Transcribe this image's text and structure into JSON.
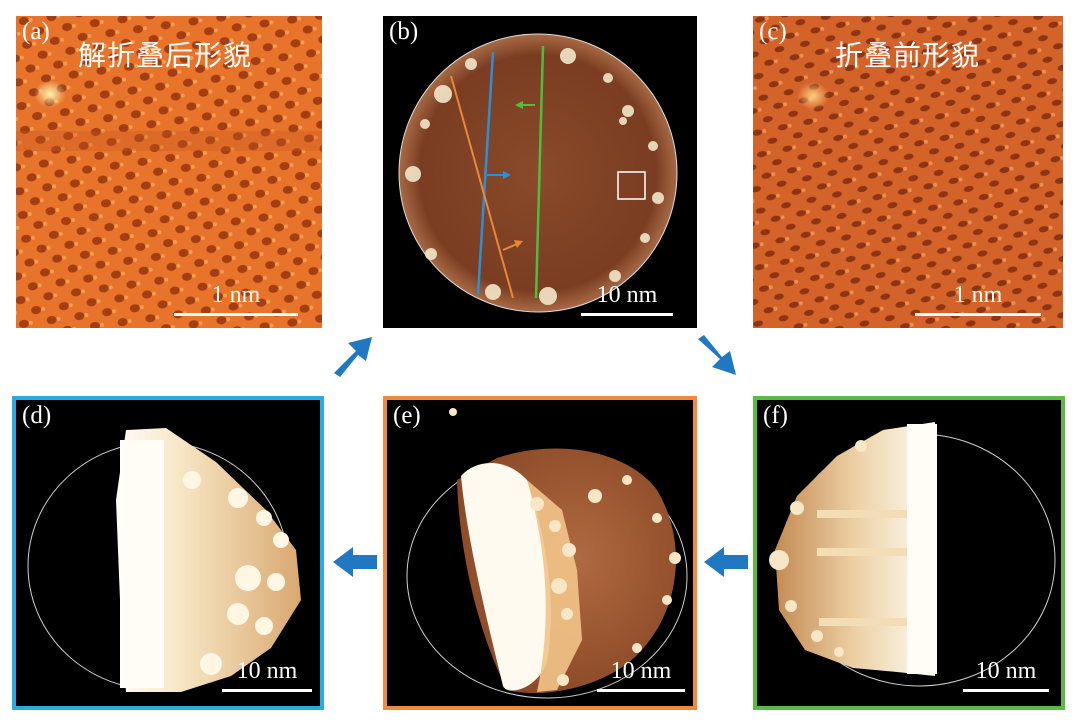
{
  "panels": {
    "a": {
      "label": "(a)",
      "title": "解折叠后形貌",
      "scale": "1 nm"
    },
    "b": {
      "label": "(b)",
      "scale": "10 nm"
    },
    "c": {
      "label": "(c)",
      "title": "折叠前形貌",
      "scale": "1 nm"
    },
    "d": {
      "label": "(d)",
      "scale": "10 nm",
      "frame_color": "#29abe2"
    },
    "e": {
      "label": "(e)",
      "scale": "10 nm",
      "frame_color": "#f08a3c"
    },
    "f": {
      "label": "(f)",
      "scale": "10 nm",
      "frame_color": "#5cb847"
    }
  },
  "colors": {
    "arrow": "#1f78c1",
    "line_blue": "#2d8fd6",
    "line_orange": "#e8883a",
    "line_green": "#4cc03c"
  }
}
